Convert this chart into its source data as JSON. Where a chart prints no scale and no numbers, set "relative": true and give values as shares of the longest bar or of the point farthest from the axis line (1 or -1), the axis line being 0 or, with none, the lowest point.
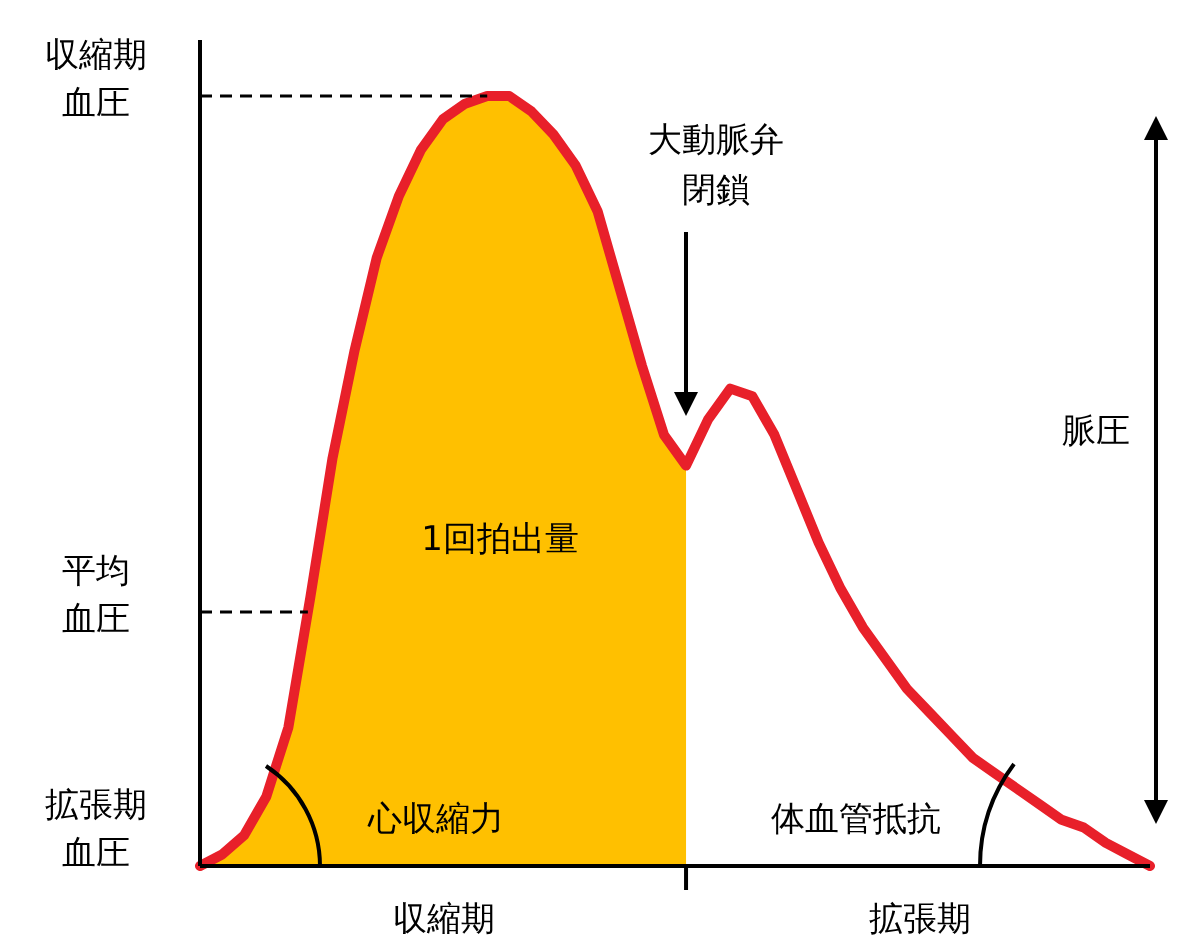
{
  "chart_data": {
    "type": "area",
    "relative": true,
    "categories": [
      null,
      null,
      null,
      null,
      null,
      null,
      null,
      null,
      null,
      null,
      null,
      null,
      null,
      null,
      null,
      null,
      null,
      null,
      null,
      null,
      null,
      null,
      null,
      null,
      null,
      null,
      null,
      null,
      null,
      null,
      null,
      null,
      null,
      null,
      null,
      null,
      null,
      null,
      null,
      null,
      null,
      null,
      null,
      null
    ],
    "series": [
      {
        "type": "area",
        "color": "#ffc000",
        "values": [
          0,
          0.015,
          0.04,
          0.09,
          0.18,
          0.35,
          0.53,
          0.67,
          0.79,
          0.87,
          0.93,
          0.97,
          0.99,
          1,
          1,
          0.98,
          0.95,
          0.91,
          0.85,
          0.75,
          0.65,
          0.56,
          0.52,
          null,
          null,
          null,
          null,
          null,
          null,
          null,
          null,
          null,
          null,
          null,
          null,
          null,
          null,
          null,
          null,
          null,
          null,
          null,
          null,
          null
        ]
      },
      {
        "type": "line",
        "color": "#e8202a",
        "line_style": "solid",
        "values": [
          0,
          0.015,
          0.04,
          0.09,
          0.18,
          0.35,
          0.53,
          0.67,
          0.79,
          0.87,
          0.93,
          0.97,
          0.99,
          1,
          1,
          0.98,
          0.95,
          0.91,
          0.85,
          0.75,
          0.65,
          0.56,
          0.52,
          0.58,
          0.62,
          0.61,
          0.56,
          0.49,
          0.42,
          0.36,
          0.31,
          0.27,
          0.23,
          0.2,
          0.17,
          0.14,
          0.12,
          0.1,
          0.08,
          0.06,
          0.05,
          0.03,
          0.015,
          0
        ]
      }
    ],
    "ref_lines": [
      {
        "axis": "y",
        "value": 1,
        "label": "収縮期血圧",
        "line_style": "dashed",
        "color": "#000000"
      },
      {
        "axis": "y",
        "value": 0.33,
        "label": "平均血圧",
        "line_style": "dashed",
        "color": "#000000"
      },
      {
        "axis": "y",
        "value": 0,
        "label": "拡張期血圧"
      }
    ],
    "annotations": [
      "大動脈弁閉鎖",
      "1回拍出量",
      "心収縮力",
      "体血管抵抗",
      "脈圧",
      "収縮期",
      "拡張期"
    ]
  }
}
